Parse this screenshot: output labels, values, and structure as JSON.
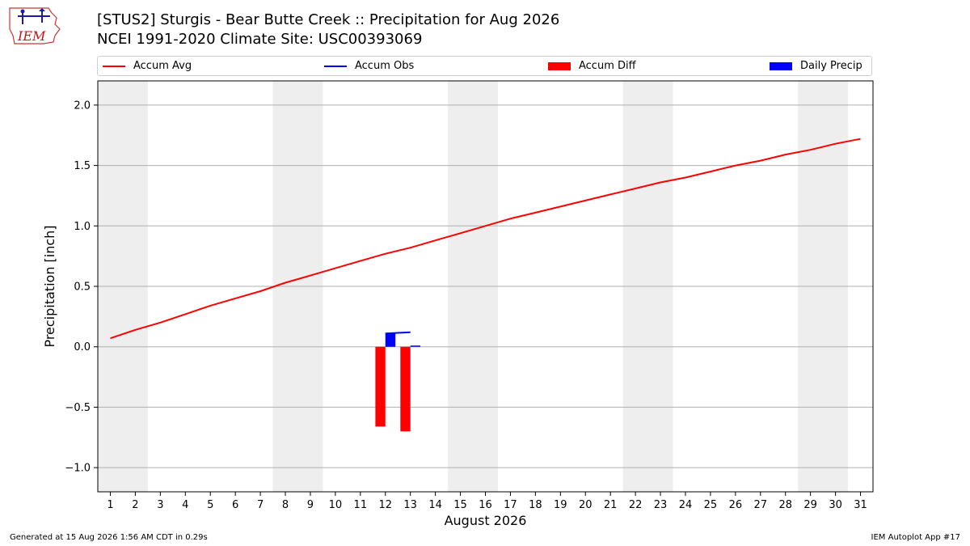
{
  "header": {
    "title_line1": "[STUS2] Sturgis - Bear Butte Creek :: Precipitation for Aug 2026",
    "title_line2": "NCEI 1991-2020 Climate Site: USC00393069",
    "logo_text": "IEM"
  },
  "colors": {
    "avg": "#ff0000",
    "obs": "#0000ff",
    "diff": "#ff0000",
    "daily": "#0000ff",
    "weekend": "#eeeeee"
  },
  "footer": {
    "left": "Generated at 15 Aug 2026 1:56 AM CDT in 0.29s",
    "right": "IEM Autoplot App #17"
  },
  "chart_data": {
    "type": "line",
    "xlabel": "August 2026",
    "ylabel": "Precipitation [inch]",
    "xlim": [
      0.5,
      31.5
    ],
    "ylim": [
      -1.2,
      2.2
    ],
    "x": [
      1,
      2,
      3,
      4,
      5,
      6,
      7,
      8,
      9,
      10,
      11,
      12,
      13,
      14,
      15,
      16,
      17,
      18,
      19,
      20,
      21,
      22,
      23,
      24,
      25,
      26,
      27,
      28,
      29,
      30,
      31
    ],
    "xtick_labels": [
      "1",
      "2",
      "3",
      "4",
      "5",
      "6",
      "7",
      "8",
      "9",
      "10",
      "11",
      "12",
      "13",
      "14",
      "15",
      "16",
      "17",
      "18",
      "19",
      "20",
      "21",
      "22",
      "23",
      "24",
      "25",
      "26",
      "27",
      "28",
      "29",
      "30",
      "31"
    ],
    "yticks": [
      -1.0,
      -0.5,
      0.0,
      0.5,
      1.0,
      1.5,
      2.0
    ],
    "ytick_labels": [
      "−1.0",
      "−0.5",
      "0.0",
      "0.5",
      "1.0",
      "1.5",
      "2.0"
    ],
    "grid": "y",
    "legend_position": "top",
    "weekend_bands": [
      [
        0.5,
        2.5
      ],
      [
        7.5,
        9.5
      ],
      [
        14.5,
        16.5
      ],
      [
        21.5,
        23.5
      ],
      [
        28.5,
        30.5
      ]
    ],
    "legend": [
      {
        "label": "Accum Avg",
        "kind": "line",
        "color": "#ff0000"
      },
      {
        "label": "Accum Obs",
        "kind": "line",
        "color": "#0000ff"
      },
      {
        "label": "Accum Diff",
        "kind": "box",
        "color": "#ff0000"
      },
      {
        "label": "Daily Precip",
        "kind": "box",
        "color": "#0000ff"
      }
    ],
    "series": [
      {
        "name": "Accum Avg",
        "type": "line",
        "color": "#ff0000",
        "x": [
          1,
          2,
          3,
          4,
          5,
          6,
          7,
          8,
          9,
          10,
          11,
          12,
          13,
          14,
          15,
          16,
          17,
          18,
          19,
          20,
          21,
          22,
          23,
          24,
          25,
          26,
          27,
          28,
          29,
          30,
          31
        ],
        "values": [
          0.07,
          0.14,
          0.2,
          0.27,
          0.34,
          0.4,
          0.46,
          0.53,
          0.59,
          0.65,
          0.71,
          0.77,
          0.82,
          0.88,
          0.94,
          1.0,
          1.06,
          1.11,
          1.16,
          1.21,
          1.26,
          1.31,
          1.36,
          1.4,
          1.45,
          1.5,
          1.54,
          1.59,
          1.63,
          1.68,
          1.72
        ]
      },
      {
        "name": "Accum Obs",
        "type": "line",
        "color": "#0000ff",
        "x": [
          12,
          13
        ],
        "values": [
          0.11,
          0.12
        ]
      },
      {
        "name": "Accum Diff",
        "type": "bar",
        "color": "#ff0000",
        "offset": -0.2,
        "x": [
          12,
          13
        ],
        "values": [
          -0.66,
          -0.7
        ]
      },
      {
        "name": "Daily Precip",
        "type": "bar",
        "color": "#0000ff",
        "offset": 0.2,
        "x": [
          12,
          13
        ],
        "values": [
          0.11,
          0.01
        ]
      }
    ]
  }
}
